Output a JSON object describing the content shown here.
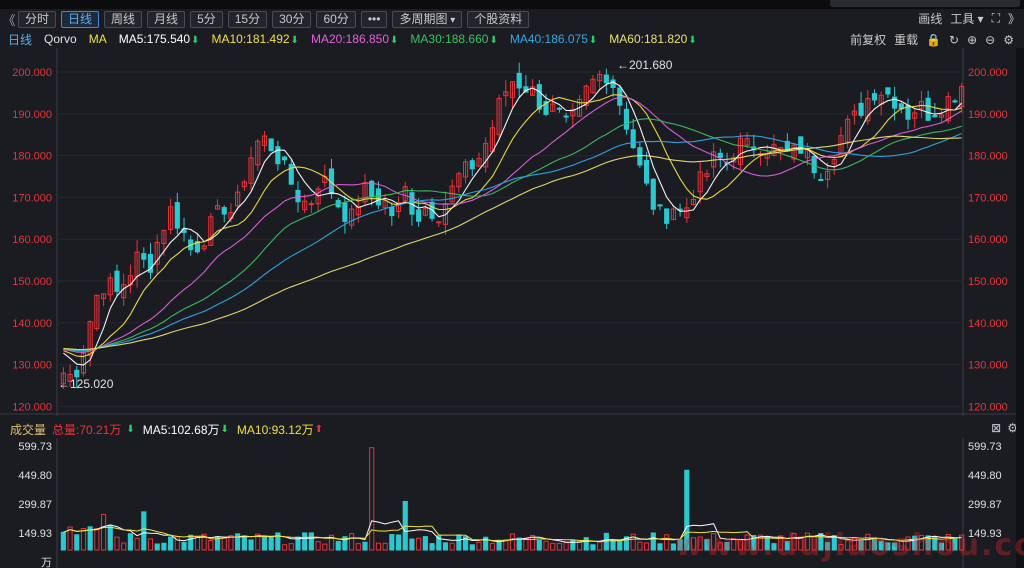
{
  "toolbar": {
    "back_arrow": "《",
    "tabs": [
      {
        "label": "分时",
        "active": false
      },
      {
        "label": "日线",
        "active": true
      },
      {
        "label": "周线",
        "active": false
      },
      {
        "label": "月线",
        "active": false
      },
      {
        "label": "5分",
        "active": false
      },
      {
        "label": "15分",
        "active": false
      },
      {
        "label": "30分",
        "active": false
      },
      {
        "label": "60分",
        "active": false
      }
    ],
    "more_label": "•••",
    "multi_period_label": "多周期图",
    "stock_info_label": "个股资料",
    "draw_label": "画线",
    "tools_label": "工具",
    "forward_arrow": "》"
  },
  "info": {
    "period": "日线",
    "stock_name": "Qorvo",
    "ma_label": "MA",
    "ma": [
      {
        "label": "MA5:175.540",
        "color": "#ffffff"
      },
      {
        "label": "MA10:181.492",
        "color": "#f0e040"
      },
      {
        "label": "MA20:186.850",
        "color": "#e060e0"
      },
      {
        "label": "MA30:188.660",
        "color": "#3cc060"
      },
      {
        "label": "MA40:186.075",
        "color": "#30a8e8"
      },
      {
        "label": "MA60:181.820",
        "color": "#e8e070"
      }
    ],
    "adjust_label": "前复权",
    "reset_label": "重载"
  },
  "volume": {
    "title": "成交量",
    "total_label": "总量:70.21万",
    "ma5_label": "MA5:102.68万",
    "ma10_label": "MA10:93.12万"
  },
  "chart_data": [
    {
      "type": "candlestick",
      "title": "Qorvo 日线",
      "ylim": [
        120,
        200
      ],
      "y_ticks": [
        "200.000",
        "190.000",
        "180.000",
        "170.000",
        "160.000",
        "150.000",
        "140.000",
        "130.000",
        "120.000"
      ],
      "annotations": [
        {
          "text": "←201.680",
          "kind": "high"
        },
        {
          "text": "←125.020",
          "kind": "low"
        }
      ],
      "bars": 135,
      "close_path": [
        128,
        127,
        135,
        146,
        150,
        147,
        151,
        156,
        153,
        161,
        167,
        163,
        157,
        160,
        164,
        168,
        166,
        176,
        183,
        184,
        180,
        175,
        170,
        168,
        175,
        172,
        167,
        165,
        172,
        170,
        169,
        165,
        172,
        165,
        168,
        166,
        170,
        175,
        177,
        180,
        186,
        194,
        198,
        197,
        195,
        191,
        191,
        187,
        190,
        196,
        199,
        200,
        193,
        185,
        176,
        169,
        165,
        168,
        166,
        172,
        175,
        180,
        178,
        183,
        182,
        183,
        182,
        181,
        180,
        182,
        178,
        176,
        181,
        186,
        189,
        193,
        196,
        195,
        193,
        190,
        192,
        190,
        192,
        194,
        197
      ],
      "series": [
        {
          "name": "MA5",
          "color": "#ffffff"
        },
        {
          "name": "MA10",
          "color": "#f0e040"
        },
        {
          "name": "MA20",
          "color": "#e060e0"
        },
        {
          "name": "MA30",
          "color": "#3cc060"
        },
        {
          "name": "MA40",
          "color": "#30a8e8"
        },
        {
          "name": "MA60",
          "color": "#e8e070"
        }
      ],
      "up_color": "#e8333b",
      "down_color": "#2cc8d0"
    },
    {
      "type": "bar",
      "title": "成交量",
      "ylim": [
        0,
        600
      ],
      "y_ticks": [
        "599.73",
        "449.80",
        "299.87",
        "149.93",
        "万"
      ],
      "spikes": [
        {
          "pos": 0.342,
          "value": 590,
          "up": true
        },
        {
          "pos": 0.692,
          "value": 460,
          "up": false
        },
        {
          "pos": 0.38,
          "value": 280,
          "up": true
        },
        {
          "pos": 0.09,
          "value": 220,
          "up": false
        }
      ]
    }
  ],
  "watermark": "www.dujiaoshou.com"
}
